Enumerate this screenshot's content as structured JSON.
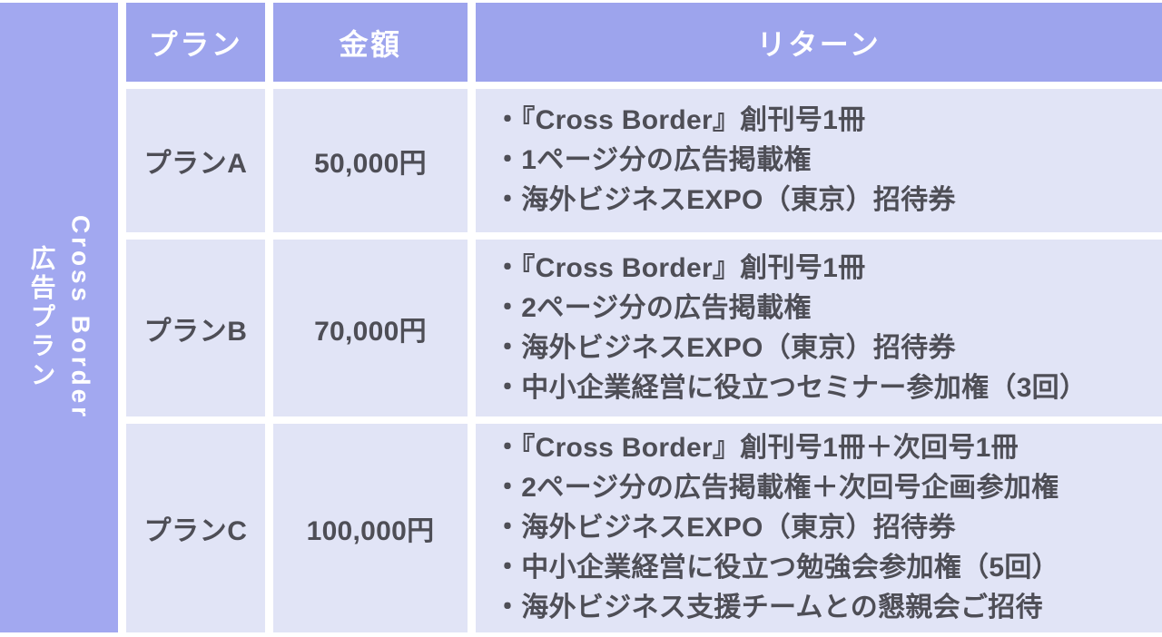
{
  "colors": {
    "page_bg": "#ffffff",
    "sidebar_bg": "#a2a8f0",
    "header_bg": "#9da4ed",
    "cell_bg": "#e1e4f6",
    "header_text": "#ffffff",
    "body_text": "#4e4e56"
  },
  "sidebar": {
    "title_lines": [
      "Cross Border",
      "広告プラン"
    ]
  },
  "table": {
    "headers": [
      {
        "label": "プラン"
      },
      {
        "label": "金額"
      },
      {
        "label": "リターン"
      }
    ],
    "rows": [
      {
        "plan": "プランA",
        "price": "50,000円",
        "returns": [
          "・『Cross Border』創刊号1冊",
          "・1ページ分の広告掲載権",
          "・海外ビジネスEXPO（東京）招待券"
        ]
      },
      {
        "plan": "プランB",
        "price": "70,000円",
        "returns": [
          "・『Cross Border』創刊号1冊",
          "・2ページ分の広告掲載権",
          "・海外ビジネスEXPO（東京）招待券",
          "・中小企業経営に役立つセミナー参加権（3回）"
        ]
      },
      {
        "plan": "プランC",
        "price": "100,000円",
        "returns": [
          "・『Cross Border』創刊号1冊＋次回号1冊",
          "・2ページ分の広告掲載権＋次回号企画参加権",
          "・海外ビジネスEXPO（東京）招待券",
          "・中小企業経営に役立つ勉強会参加権（5回）",
          "・海外ビジネス支援チームとの懇親会ご招待"
        ]
      }
    ]
  }
}
